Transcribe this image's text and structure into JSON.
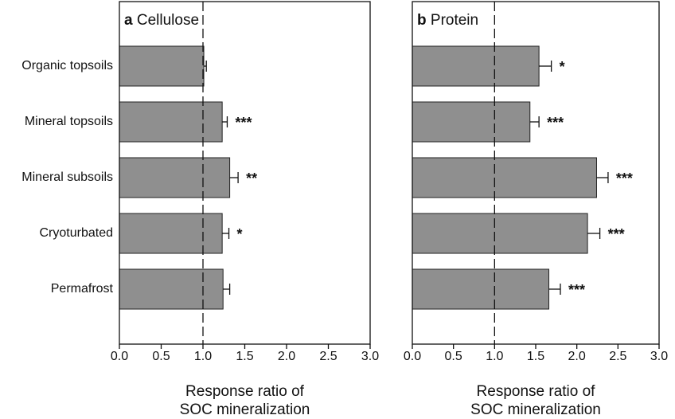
{
  "chart_data": [
    {
      "type": "bar",
      "orientation": "horizontal",
      "panel_label": "a",
      "title": "Cellulose",
      "categories": [
        "Organic topsoils",
        "Mineral topsoils",
        "Mineral subsoils",
        "Cryoturbated",
        "Permafrost"
      ],
      "values": [
        1.01,
        1.23,
        1.32,
        1.23,
        1.24
      ],
      "errors": [
        0.03,
        0.06,
        0.1,
        0.08,
        0.08
      ],
      "significance": [
        null,
        "***",
        "**",
        "*",
        null
      ],
      "color": "#8f8f8f",
      "reference_line": 1,
      "xlim": [
        0,
        3
      ],
      "xticks": [
        {
          "value": 0,
          "label": "0.0"
        },
        0.5,
        {
          "value": 1,
          "label": "1.0"
        },
        1.5,
        {
          "value": 2,
          "label": "2.0"
        },
        2.5,
        {
          "value": 3,
          "label": "3.0"
        }
      ],
      "xlabel": [
        "Response ratio of",
        "SOC mineralization"
      ]
    },
    {
      "type": "bar",
      "orientation": "horizontal",
      "panel_label": "b",
      "title": "Protein",
      "values": [
        1.54,
        1.43,
        2.24,
        2.13,
        1.66
      ],
      "errors": [
        0.15,
        0.11,
        0.14,
        0.15,
        0.14
      ],
      "significance": [
        "*",
        "***",
        "***",
        "***",
        "***"
      ],
      "color": "#8f8f8f",
      "reference_line": 1,
      "xlim": [
        0,
        3
      ],
      "xticks": [
        {
          "value": 0,
          "label": "0.0"
        },
        0.5,
        {
          "value": 1,
          "label": "1.0"
        },
        1.5,
        {
          "value": 2,
          "label": "2.0"
        },
        2.5,
        {
          "value": 3,
          "label": "3.0"
        }
      ],
      "xlabel": [
        "Response ratio of",
        "SOC mineralization"
      ]
    }
  ]
}
